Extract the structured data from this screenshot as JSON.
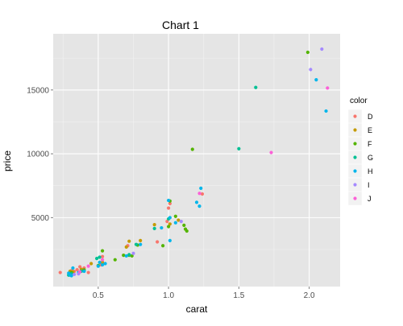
{
  "chart_data": {
    "type": "scatter",
    "title": "Chart 1",
    "xlabel": "carat",
    "ylabel": "price",
    "xlim": [
      0.18,
      2.22
    ],
    "ylim": [
      -400,
      19400
    ],
    "x_ticks": [
      0.5,
      1.0,
      1.5,
      2.0
    ],
    "x_tick_labels": [
      "0.5",
      "1.0",
      "1.5",
      "2.0"
    ],
    "y_ticks": [
      5000,
      10000,
      15000
    ],
    "y_tick_labels": [
      "5000",
      "10000",
      "15000"
    ],
    "grid": true,
    "panel_background": "#E5E5E5",
    "grid_color": "#FFFFFF",
    "legend": {
      "title": "color",
      "position": "right",
      "entries": [
        "D",
        "E",
        "F",
        "G",
        "H",
        "I",
        "J"
      ]
    },
    "series": [
      {
        "name": "D",
        "color": "#F8766D",
        "points": [
          [
            0.23,
            700
          ],
          [
            0.31,
            850
          ],
          [
            0.33,
            780
          ],
          [
            0.35,
            920
          ],
          [
            0.37,
            1150
          ],
          [
            0.4,
            1050
          ],
          [
            0.43,
            700
          ],
          [
            0.52,
            1300
          ],
          [
            0.53,
            1950
          ],
          [
            0.71,
            2800
          ],
          [
            0.92,
            3100
          ],
          [
            0.99,
            4700
          ],
          [
            1.0,
            5750
          ],
          [
            1.01,
            6100
          ],
          [
            1.24,
            6850
          ]
        ]
      },
      {
        "name": "E",
        "color": "#C49A00",
        "points": [
          [
            0.3,
            800
          ],
          [
            0.32,
            760
          ],
          [
            0.38,
            950
          ],
          [
            0.45,
            1400
          ],
          [
            0.53,
            1500
          ],
          [
            0.7,
            2700
          ],
          [
            0.72,
            3150
          ],
          [
            0.8,
            3200
          ],
          [
            0.9,
            4450
          ],
          [
            1.01,
            4500
          ],
          [
            1.07,
            4800
          ]
        ]
      },
      {
        "name": "F",
        "color": "#53B400",
        "points": [
          [
            0.31,
            700
          ],
          [
            0.4,
            900
          ],
          [
            0.5,
            1250
          ],
          [
            0.53,
            2400
          ],
          [
            0.62,
            1700
          ],
          [
            0.68,
            2050
          ],
          [
            0.72,
            2050
          ],
          [
            0.74,
            2000
          ],
          [
            0.78,
            2850
          ],
          [
            0.96,
            2800
          ],
          [
            1.0,
            4300
          ],
          [
            1.01,
            6300
          ],
          [
            1.05,
            5100
          ],
          [
            1.11,
            4400
          ],
          [
            1.12,
            4100
          ],
          [
            1.13,
            3950
          ],
          [
            1.17,
            10350
          ],
          [
            1.99,
            17950
          ]
        ]
      },
      {
        "name": "G",
        "color": "#00C094",
        "points": [
          [
            0.29,
            500
          ],
          [
            0.31,
            600
          ],
          [
            0.38,
            800
          ],
          [
            0.49,
            1800
          ],
          [
            0.51,
            1900
          ],
          [
            0.72,
            2100
          ],
          [
            0.77,
            2900
          ],
          [
            0.9,
            4150
          ],
          [
            1.0,
            4900
          ],
          [
            1.5,
            10400
          ],
          [
            1.62,
            15200
          ]
        ]
      },
      {
        "name": "H",
        "color": "#00B6EB",
        "points": [
          [
            0.29,
            650
          ],
          [
            0.3,
            500
          ],
          [
            0.31,
            450
          ],
          [
            0.32,
            1050
          ],
          [
            0.36,
            700
          ],
          [
            0.4,
            800
          ],
          [
            0.5,
            1200
          ],
          [
            0.51,
            1500
          ],
          [
            0.53,
            1300
          ],
          [
            0.55,
            1400
          ],
          [
            0.7,
            2000
          ],
          [
            0.8,
            2900
          ],
          [
            0.95,
            4200
          ],
          [
            1.0,
            6350
          ],
          [
            1.01,
            3200
          ],
          [
            1.01,
            5000
          ],
          [
            1.05,
            4600
          ],
          [
            1.2,
            6200
          ],
          [
            1.22,
            5900
          ],
          [
            1.23,
            7300
          ],
          [
            2.05,
            15800
          ],
          [
            2.12,
            13350
          ]
        ]
      },
      {
        "name": "I",
        "color": "#A58AFF",
        "points": [
          [
            0.33,
            550
          ],
          [
            0.36,
            600
          ],
          [
            0.75,
            2200
          ],
          [
            1.09,
            4700
          ],
          [
            2.01,
            16600
          ],
          [
            2.09,
            18200
          ]
        ]
      },
      {
        "name": "J",
        "color": "#FB61D7",
        "points": [
          [
            0.37,
            750
          ],
          [
            0.43,
            1200
          ],
          [
            0.53,
            1700
          ],
          [
            1.22,
            6900
          ],
          [
            1.73,
            10100
          ],
          [
            2.13,
            15150
          ]
        ]
      }
    ]
  }
}
